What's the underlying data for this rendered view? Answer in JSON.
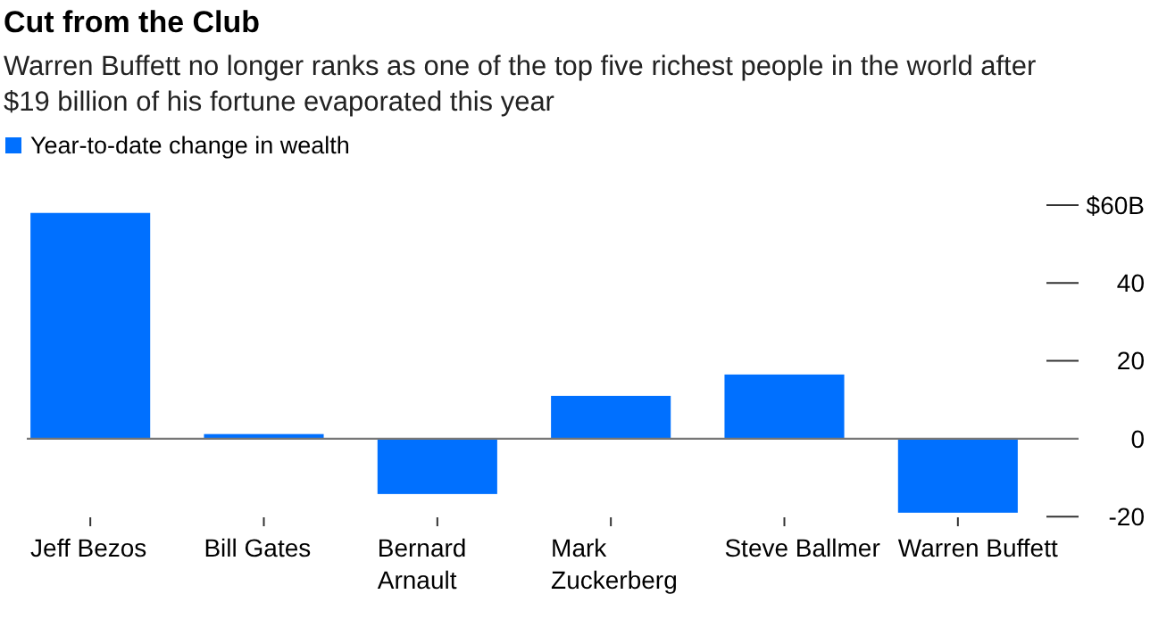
{
  "chart_data": {
    "type": "bar",
    "title": "Cut from the Club",
    "subtitle": "Warren Buffett no longer ranks as one of the top five richest people in the world after $19 billion of his fortune evaporated this year",
    "categories": [
      "Jeff Bezos",
      "Bill Gates",
      "Bernard Arnault",
      "Mark Zuckerberg",
      "Steve Ballmer",
      "Warren Buffett"
    ],
    "series": [
      {
        "name": "Year-to-date change in wealth",
        "color": "#0070ff",
        "values": [
          58,
          1.2,
          -14.2,
          11,
          16.5,
          -19
        ]
      }
    ],
    "ylim": [
      -20,
      60
    ],
    "yticks": [
      {
        "value": 60,
        "label": "$60B"
      },
      40,
      20,
      0,
      -20
    ],
    "grid": "y",
    "legend": "top left"
  }
}
